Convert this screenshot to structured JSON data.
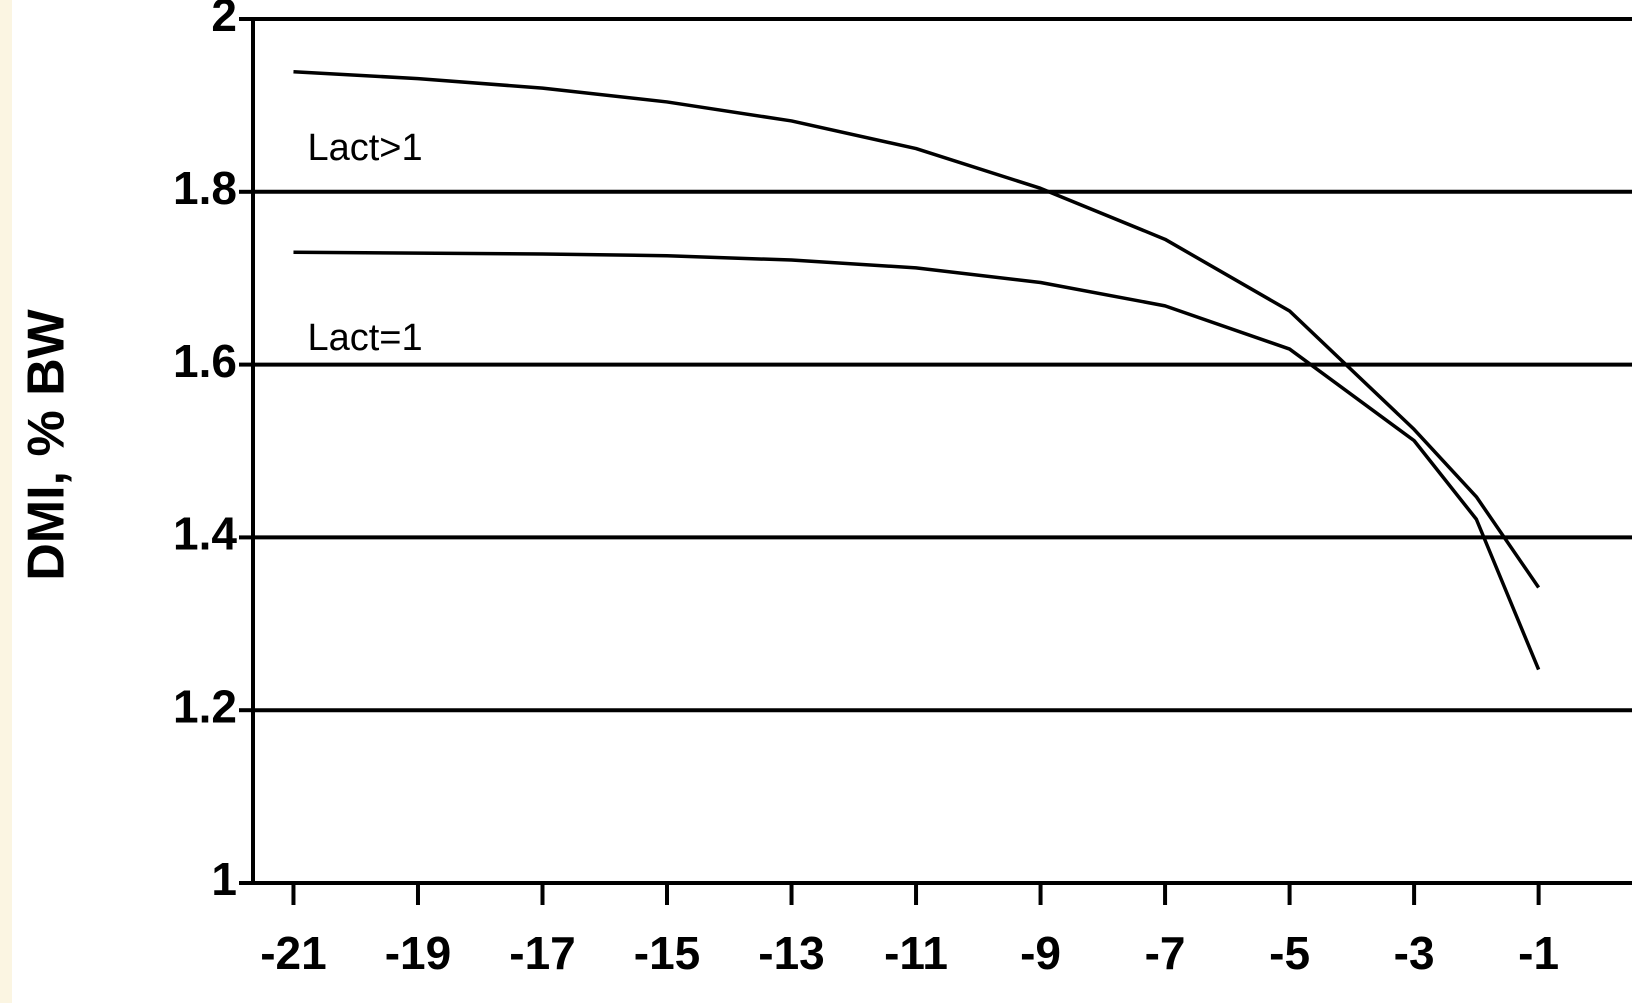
{
  "chart_data": {
    "type": "line",
    "y_label": "DMI, % BW",
    "x": [
      -21,
      -19,
      -17,
      -15,
      -13,
      -11,
      -9,
      -7,
      -5,
      -3,
      -2,
      -1
    ],
    "series": [
      {
        "name": "Lact>1",
        "color": "#000000",
        "values": [
          1.939,
          1.931,
          1.92,
          1.904,
          1.882,
          1.85,
          1.804,
          1.745,
          1.662,
          1.525,
          1.447,
          1.342
        ]
      },
      {
        "name": "Lact=1",
        "color": "#000000",
        "values": [
          1.73,
          1.729,
          1.728,
          1.726,
          1.721,
          1.712,
          1.695,
          1.668,
          1.618,
          1.512,
          1.421,
          1.247
        ]
      }
    ],
    "xlim": [
      -21.65,
      0.5
    ],
    "xticks": [
      -21,
      -19,
      -17,
      -15,
      -13,
      -11,
      -9,
      -7,
      -5,
      -3,
      -1
    ],
    "ylim": [
      1,
      2
    ],
    "yticks": [
      1,
      {
        "value": 1.2,
        "label": "1.2"
      },
      {
        "value": 1.4,
        "label": "1.4"
      },
      {
        "value": 1.6,
        "label": "1.6"
      },
      {
        "value": 1.8,
        "label": "1.8"
      },
      2
    ],
    "grid": true
  }
}
